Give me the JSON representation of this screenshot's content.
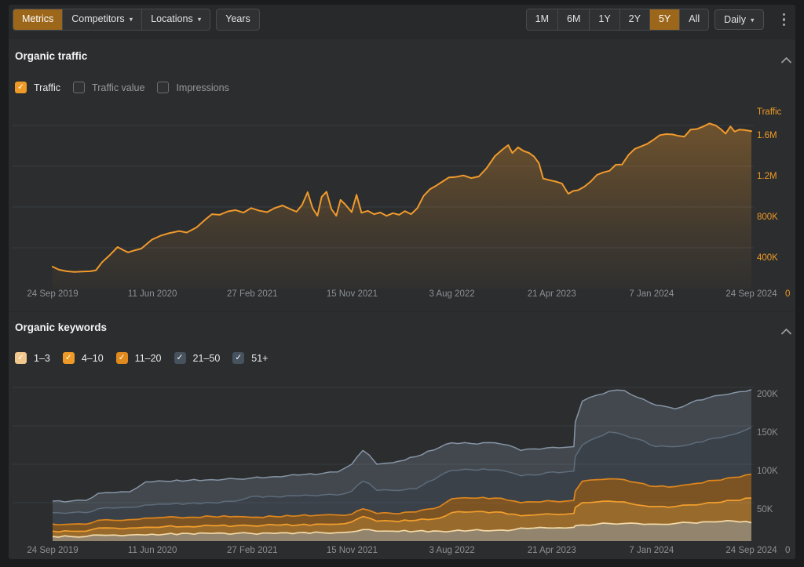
{
  "icons": {
    "caret_down": "▾",
    "check": "✓",
    "chevron_up": "chevron-up",
    "kebab": "vertical-dots"
  },
  "colors": {
    "page_frame": "#1b1c1d",
    "panel_bg": "#2b2d2f",
    "toolbar_bg": "#28292b",
    "gridline": "#3a3d40",
    "accent": "#ef9a26",
    "selected_button_bg": "#9c671b",
    "button_text": "#e2e3e4",
    "muted_text": "#8d9093",
    "title_text": "#f2f3f4"
  },
  "toolbar": {
    "left_groups": [
      {
        "buttons": [
          {
            "label": "Metrics",
            "selected": true
          },
          {
            "label": "Competitors",
            "caret": true
          },
          {
            "label": "Locations",
            "caret": true
          }
        ]
      },
      {
        "buttons": [
          {
            "label": "Years"
          }
        ]
      }
    ],
    "range_buttons": [
      {
        "label": "1M"
      },
      {
        "label": "6M"
      },
      {
        "label": "1Y"
      },
      {
        "label": "2Y"
      },
      {
        "label": "5Y",
        "selected": true
      },
      {
        "label": "All"
      }
    ],
    "granularity": {
      "label": "Daily",
      "caret": true
    }
  },
  "traffic_section": {
    "title": "Organic traffic",
    "checkboxes": [
      {
        "label": "Traffic",
        "checked": true,
        "color": "#ef9a26"
      },
      {
        "label": "Traffic value",
        "checked": false,
        "color": ""
      },
      {
        "label": "Impressions",
        "checked": false,
        "color": ""
      }
    ]
  },
  "keywords_section": {
    "title": "Organic keywords",
    "checkboxes": [
      {
        "label": "1–3",
        "checked": true,
        "color": "#f2c78e"
      },
      {
        "label": "4–10",
        "checked": true,
        "color": "#ef9a26"
      },
      {
        "label": "11–20",
        "checked": true,
        "color": "#e08a1e"
      },
      {
        "label": "21–50",
        "checked": true,
        "color": "#47525f"
      },
      {
        "label": "51+",
        "checked": true,
        "color": "#47525f"
      }
    ]
  },
  "chart_data": [
    {
      "type": "area",
      "title": "Organic traffic",
      "y_axis_label": "Traffic",
      "value_unit": "K",
      "ylim": [
        0,
        1760
      ],
      "line_color": "#f09a2c",
      "axis_value_color": "#ef9a26",
      "zero_label": "0",
      "y_ticks": [
        {
          "label": "1.6M",
          "value": 1600
        },
        {
          "label": "1.2M",
          "value": 1200
        },
        {
          "label": "800K",
          "value": 800
        },
        {
          "label": "400K",
          "value": 400
        },
        {
          "label": "0",
          "value": 0
        }
      ],
      "x_ticks": [
        "24 Sep 2019",
        "11 Jun 2020",
        "27 Feb 2021",
        "15 Nov 2021",
        "3 Aug 2022",
        "21 Apr 2023",
        "7 Jan 2024",
        "24 Sep 2024"
      ],
      "series": [
        {
          "name": "Traffic",
          "points": [
            [
              0.0,
              215
            ],
            [
              0.009,
              185
            ],
            [
              0.02,
              170
            ],
            [
              0.031,
              163
            ],
            [
              0.043,
              168
            ],
            [
              0.054,
              170
            ],
            [
              0.062,
              180
            ],
            [
              0.071,
              260
            ],
            [
              0.082,
              330
            ],
            [
              0.093,
              408
            ],
            [
              0.101,
              378
            ],
            [
              0.108,
              355
            ],
            [
              0.116,
              372
            ],
            [
              0.127,
              392
            ],
            [
              0.142,
              480
            ],
            [
              0.155,
              520
            ],
            [
              0.166,
              542
            ],
            [
              0.181,
              565
            ],
            [
              0.192,
              550
            ],
            [
              0.206,
              600
            ],
            [
              0.219,
              680
            ],
            [
              0.228,
              730
            ],
            [
              0.239,
              724
            ],
            [
              0.251,
              758
            ],
            [
              0.262,
              770
            ],
            [
              0.273,
              745
            ],
            [
              0.284,
              790
            ],
            [
              0.296,
              764
            ],
            [
              0.307,
              750
            ],
            [
              0.318,
              790
            ],
            [
              0.329,
              815
            ],
            [
              0.34,
              780
            ],
            [
              0.349,
              754
            ],
            [
              0.357,
              820
            ],
            [
              0.365,
              945
            ],
            [
              0.372,
              790
            ],
            [
              0.379,
              715
            ],
            [
              0.385,
              900
            ],
            [
              0.392,
              950
            ],
            [
              0.399,
              780
            ],
            [
              0.406,
              714
            ],
            [
              0.412,
              870
            ],
            [
              0.419,
              824
            ],
            [
              0.428,
              750
            ],
            [
              0.435,
              920
            ],
            [
              0.442,
              744
            ],
            [
              0.451,
              762
            ],
            [
              0.46,
              730
            ],
            [
              0.469,
              746
            ],
            [
              0.478,
              714
            ],
            [
              0.487,
              740
            ],
            [
              0.496,
              724
            ],
            [
              0.504,
              760
            ],
            [
              0.513,
              730
            ],
            [
              0.522,
              790
            ],
            [
              0.531,
              910
            ],
            [
              0.54,
              975
            ],
            [
              0.549,
              1010
            ],
            [
              0.558,
              1050
            ],
            [
              0.567,
              1090
            ],
            [
              0.576,
              1094
            ],
            [
              0.588,
              1110
            ],
            [
              0.599,
              1084
            ],
            [
              0.61,
              1100
            ],
            [
              0.621,
              1180
            ],
            [
              0.633,
              1300
            ],
            [
              0.644,
              1365
            ],
            [
              0.652,
              1408
            ],
            [
              0.658,
              1330
            ],
            [
              0.666,
              1385
            ],
            [
              0.674,
              1350
            ],
            [
              0.682,
              1330
            ],
            [
              0.689,
              1295
            ],
            [
              0.696,
              1230
            ],
            [
              0.702,
              1080
            ],
            [
              0.711,
              1064
            ],
            [
              0.72,
              1050
            ],
            [
              0.729,
              1030
            ],
            [
              0.738,
              930
            ],
            [
              0.745,
              958
            ],
            [
              0.752,
              965
            ],
            [
              0.761,
              1000
            ],
            [
              0.77,
              1050
            ],
            [
              0.779,
              1115
            ],
            [
              0.788,
              1140
            ],
            [
              0.797,
              1155
            ],
            [
              0.806,
              1215
            ],
            [
              0.815,
              1218
            ],
            [
              0.824,
              1310
            ],
            [
              0.833,
              1370
            ],
            [
              0.842,
              1395
            ],
            [
              0.851,
              1420
            ],
            [
              0.86,
              1460
            ],
            [
              0.869,
              1505
            ],
            [
              0.878,
              1515
            ],
            [
              0.887,
              1512
            ],
            [
              0.896,
              1498
            ],
            [
              0.904,
              1490
            ],
            [
              0.913,
              1560
            ],
            [
              0.922,
              1565
            ],
            [
              0.931,
              1590
            ],
            [
              0.94,
              1620
            ],
            [
              0.949,
              1600
            ],
            [
              0.956,
              1565
            ],
            [
              0.963,
              1520
            ],
            [
              0.97,
              1590
            ],
            [
              0.976,
              1540
            ],
            [
              0.983,
              1560
            ],
            [
              0.99,
              1555
            ],
            [
              1.0,
              1545
            ]
          ]
        }
      ]
    },
    {
      "type": "stacked-area",
      "title": "Organic keywords",
      "value_unit": "K",
      "ylim": [
        0,
        215
      ],
      "axis_value_color": "#8d9093",
      "zero_label": "0",
      "y_ticks": [
        {
          "label": "200K",
          "value": 200
        },
        {
          "label": "150K",
          "value": 150
        },
        {
          "label": "100K",
          "value": 100
        },
        {
          "label": "50K",
          "value": 50
        },
        {
          "label": "0",
          "value": 0
        }
      ],
      "x_ticks": [
        "24 Sep 2019",
        "11 Jun 2020",
        "27 Feb 2021",
        "15 Nov 2021",
        "3 Aug 2022",
        "21 Apr 2023",
        "7 Jan 2024",
        "24 Sep 2024"
      ],
      "x": [
        0,
        0.026,
        0.048,
        0.065,
        0.088,
        0.11,
        0.133,
        0.142,
        0.161,
        0.194,
        0.228,
        0.262,
        0.284,
        0.318,
        0.352,
        0.385,
        0.408,
        0.428,
        0.444,
        0.453,
        0.464,
        0.487,
        0.52,
        0.554,
        0.571,
        0.599,
        0.633,
        0.661,
        0.67,
        0.689,
        0.716,
        0.734,
        0.746,
        0.748,
        0.758,
        0.779,
        0.796,
        0.818,
        0.837,
        0.863,
        0.891,
        0.913,
        0.947,
        0.975,
        1
      ],
      "series": [
        {
          "name": "1–3",
          "line_color": "#f3d9a7",
          "fill_color": "rgba(233,205,160,0.55)",
          "values": [
            6,
            6,
            6,
            8,
            8,
            8,
            8,
            9,
            9,
            10,
            10,
            10,
            10,
            10,
            11,
            11,
            11,
            12,
            15,
            15,
            13,
            13,
            13,
            13,
            13,
            14,
            14,
            15,
            17,
            17,
            17,
            17,
            18,
            20,
            21,
            22,
            23,
            23,
            23,
            22,
            23,
            24,
            25,
            26,
            24
          ]
        },
        {
          "name": "4–10",
          "line_color": "#f29e2c",
          "fill_color": "rgba(243,158,44,0.55)",
          "values": [
            13,
            13,
            13,
            17,
            17,
            17,
            18,
            18,
            19,
            19,
            20,
            20,
            20,
            21,
            21,
            22,
            22,
            25,
            32,
            30,
            26,
            26,
            27,
            30,
            37,
            38,
            38,
            35,
            33,
            34,
            35,
            35,
            36,
            44,
            50,
            51,
            52,
            51,
            47,
            45,
            45,
            47,
            50,
            53,
            56
          ]
        },
        {
          "name": "11–20",
          "line_color": "#dd861e",
          "fill_color": "rgba(205,123,24,0.50)",
          "values": [
            22,
            22,
            22,
            27,
            27,
            28,
            30,
            30,
            31,
            31,
            32,
            32,
            31,
            32,
            33,
            34,
            34,
            35,
            42,
            40,
            36,
            36,
            38,
            45,
            55,
            56,
            56,
            52,
            50,
            51,
            52,
            52,
            53,
            65,
            78,
            80,
            81,
            80,
            76,
            71,
            71,
            74,
            79,
            83,
            87
          ]
        },
        {
          "name": "21–50",
          "line_color": "#5d6b7a",
          "fill_color": "rgba(93,110,130,0.32)",
          "values": [
            37,
            37,
            37,
            42,
            43,
            44,
            47,
            47,
            48,
            49,
            50,
            52,
            58,
            58,
            59,
            60,
            60,
            65,
            78,
            75,
            66,
            66,
            68,
            85,
            92,
            93,
            93,
            88,
            85,
            86,
            90,
            90,
            91,
            110,
            125,
            135,
            142,
            138,
            133,
            123,
            123,
            126,
            134,
            139,
            148
          ]
        },
        {
          "name": "51+",
          "line_color": "#8694a4",
          "fill_color": "rgba(125,143,163,0.28)",
          "values": [
            52,
            52,
            53,
            62,
            63,
            64,
            77,
            77,
            78,
            79,
            80,
            81,
            82,
            84,
            86,
            88,
            90,
            100,
            118,
            112,
            100,
            102,
            110,
            122,
            128,
            127,
            128,
            122,
            118,
            120,
            122,
            122,
            123,
            155,
            182,
            190,
            195,
            196,
            187,
            177,
            172,
            180,
            189,
            193,
            197
          ]
        }
      ]
    }
  ]
}
